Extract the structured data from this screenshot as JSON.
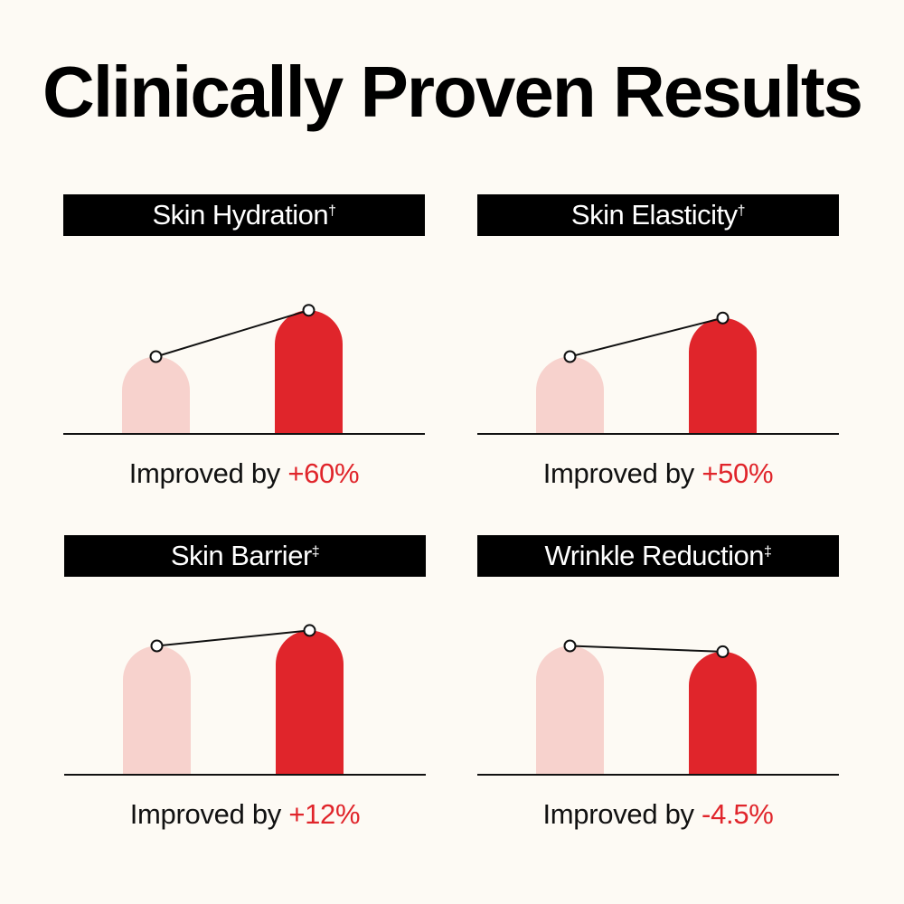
{
  "title": "Clinically Proven Results",
  "colors": {
    "before": "#f7d2cd",
    "after": "#e0252b",
    "accent": "#e0252b",
    "header_bg": "#000000"
  },
  "panels": [
    {
      "label": "Skin Hydration",
      "mark": "†",
      "caption_prefix": "Improved by ",
      "value_text": "+60%"
    },
    {
      "label": "Skin Elasticity",
      "mark": "†",
      "caption_prefix": "Improved by ",
      "value_text": "+50%"
    },
    {
      "label": "Skin Barrier",
      "mark": "‡",
      "caption_prefix": "Improved by ",
      "value_text": "+12%"
    },
    {
      "label": "Wrinkle Reduction",
      "mark": "‡",
      "caption_prefix": "Improved by ",
      "value_text": "-4.5%"
    }
  ],
  "chart_data": [
    {
      "type": "bar",
      "title": "Skin Hydration",
      "categories": [
        "",
        ""
      ],
      "values": [
        1.0,
        1.6
      ],
      "ylim": [
        0,
        2.0
      ]
    },
    {
      "type": "bar",
      "title": "Skin Elasticity",
      "categories": [
        "",
        ""
      ],
      "values": [
        1.0,
        1.5
      ],
      "ylim": [
        0,
        2.0
      ]
    },
    {
      "type": "bar",
      "title": "Skin Barrier",
      "categories": [
        "",
        ""
      ],
      "values": [
        1.0,
        1.12
      ],
      "ylim": [
        0,
        1.2
      ]
    },
    {
      "type": "bar",
      "title": "Wrinkle Reduction",
      "categories": [
        "",
        ""
      ],
      "values": [
        1.0,
        0.955
      ],
      "ylim": [
        0,
        1.2
      ]
    }
  ]
}
